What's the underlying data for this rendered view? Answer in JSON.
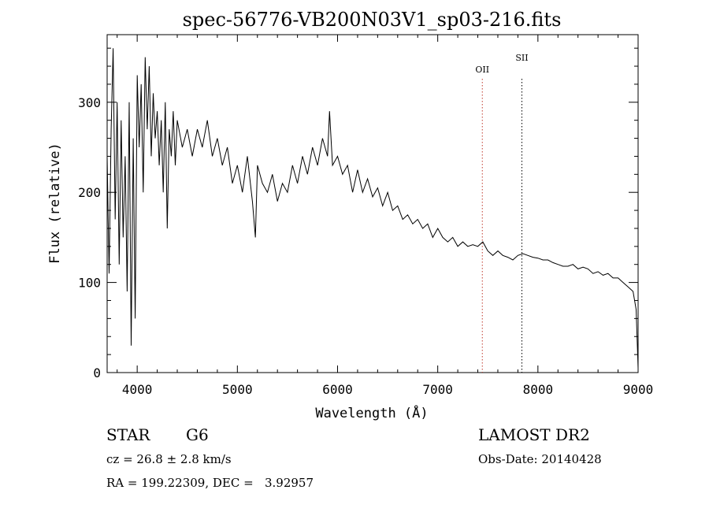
{
  "chart_data": {
    "type": "line",
    "title": "spec-56776-VB200N03V1_sp03-216.fits",
    "xlabel": "Wavelength (Å)",
    "ylabel": "Flux (relative)",
    "xlim": [
      3700,
      9000
    ],
    "ylim": [
      0,
      375
    ],
    "xticks": [
      "4000",
      "5000",
      "6000",
      "7000",
      "8000",
      "9000"
    ],
    "yticks": [
      "0",
      "100",
      "200",
      "300"
    ],
    "grid": false,
    "series": [
      {
        "x": [
          3700,
          3720,
          3740,
          3760,
          3780,
          3800,
          3820,
          3840,
          3860,
          3880,
          3900,
          3920,
          3940,
          3960,
          3980,
          4000,
          4020,
          4040,
          4060,
          4080,
          4100,
          4120,
          4140,
          4160,
          4180,
          4200,
          4220,
          4240,
          4260,
          4280,
          4300,
          4320,
          4340,
          4360,
          4380,
          4400,
          4450,
          4500,
          4550,
          4600,
          4650,
          4700,
          4750,
          4800,
          4850,
          4900,
          4950,
          5000,
          5050,
          5100,
          5150,
          5180,
          5200,
          5250,
          5300,
          5350,
          5400,
          5450,
          5500,
          5550,
          5600,
          5650,
          5700,
          5750,
          5800,
          5850,
          5900,
          5920,
          5950,
          6000,
          6050,
          6100,
          6150,
          6200,
          6250,
          6300,
          6350,
          6400,
          6450,
          6500,
          6550,
          6600,
          6650,
          6700,
          6750,
          6800,
          6850,
          6900,
          6950,
          7000,
          7050,
          7100,
          7150,
          7200,
          7250,
          7300,
          7350,
          7400,
          7450,
          7500,
          7550,
          7600,
          7650,
          7700,
          7750,
          7800,
          7850,
          7900,
          7950,
          8000,
          8050,
          8100,
          8150,
          8200,
          8250,
          8300,
          8350,
          8400,
          8450,
          8500,
          8550,
          8600,
          8650,
          8700,
          8750,
          8800,
          8850,
          8900,
          8950,
          8980,
          9000
        ],
        "y": [
          240,
          110,
          270,
          360,
          170,
          300,
          120,
          280,
          150,
          240,
          90,
          300,
          30,
          260,
          60,
          330,
          250,
          320,
          200,
          350,
          270,
          340,
          240,
          310,
          260,
          290,
          230,
          280,
          200,
          300,
          160,
          270,
          240,
          290,
          230,
          280,
          250,
          270,
          240,
          270,
          250,
          280,
          240,
          260,
          230,
          250,
          210,
          230,
          200,
          240,
          190,
          150,
          230,
          210,
          200,
          220,
          190,
          210,
          200,
          230,
          210,
          240,
          220,
          250,
          230,
          260,
          240,
          290,
          230,
          240,
          220,
          230,
          200,
          225,
          200,
          215,
          195,
          205,
          185,
          200,
          180,
          185,
          170,
          175,
          165,
          170,
          160,
          165,
          150,
          160,
          150,
          145,
          150,
          140,
          145,
          140,
          142,
          140,
          145,
          135,
          130,
          135,
          130,
          128,
          125,
          130,
          132,
          130,
          128,
          127,
          125,
          125,
          122,
          120,
          118,
          118,
          120,
          115,
          117,
          115,
          110,
          112,
          108,
          110,
          105,
          105,
          100,
          95,
          90,
          70,
          5
        ]
      }
    ],
    "annotations": [
      {
        "label": "OII",
        "x": 7445
      },
      {
        "label": "SII",
        "x": 7840
      }
    ]
  },
  "info": {
    "object_class": "STAR",
    "subclass": "G6",
    "cz": "cz = 26.8 ± 2.8 km/s",
    "coords": "RA = 199.22309, DEC =   3.92957",
    "survey": "LAMOST DR2",
    "obs_date": "Obs-Date: 20140428"
  }
}
